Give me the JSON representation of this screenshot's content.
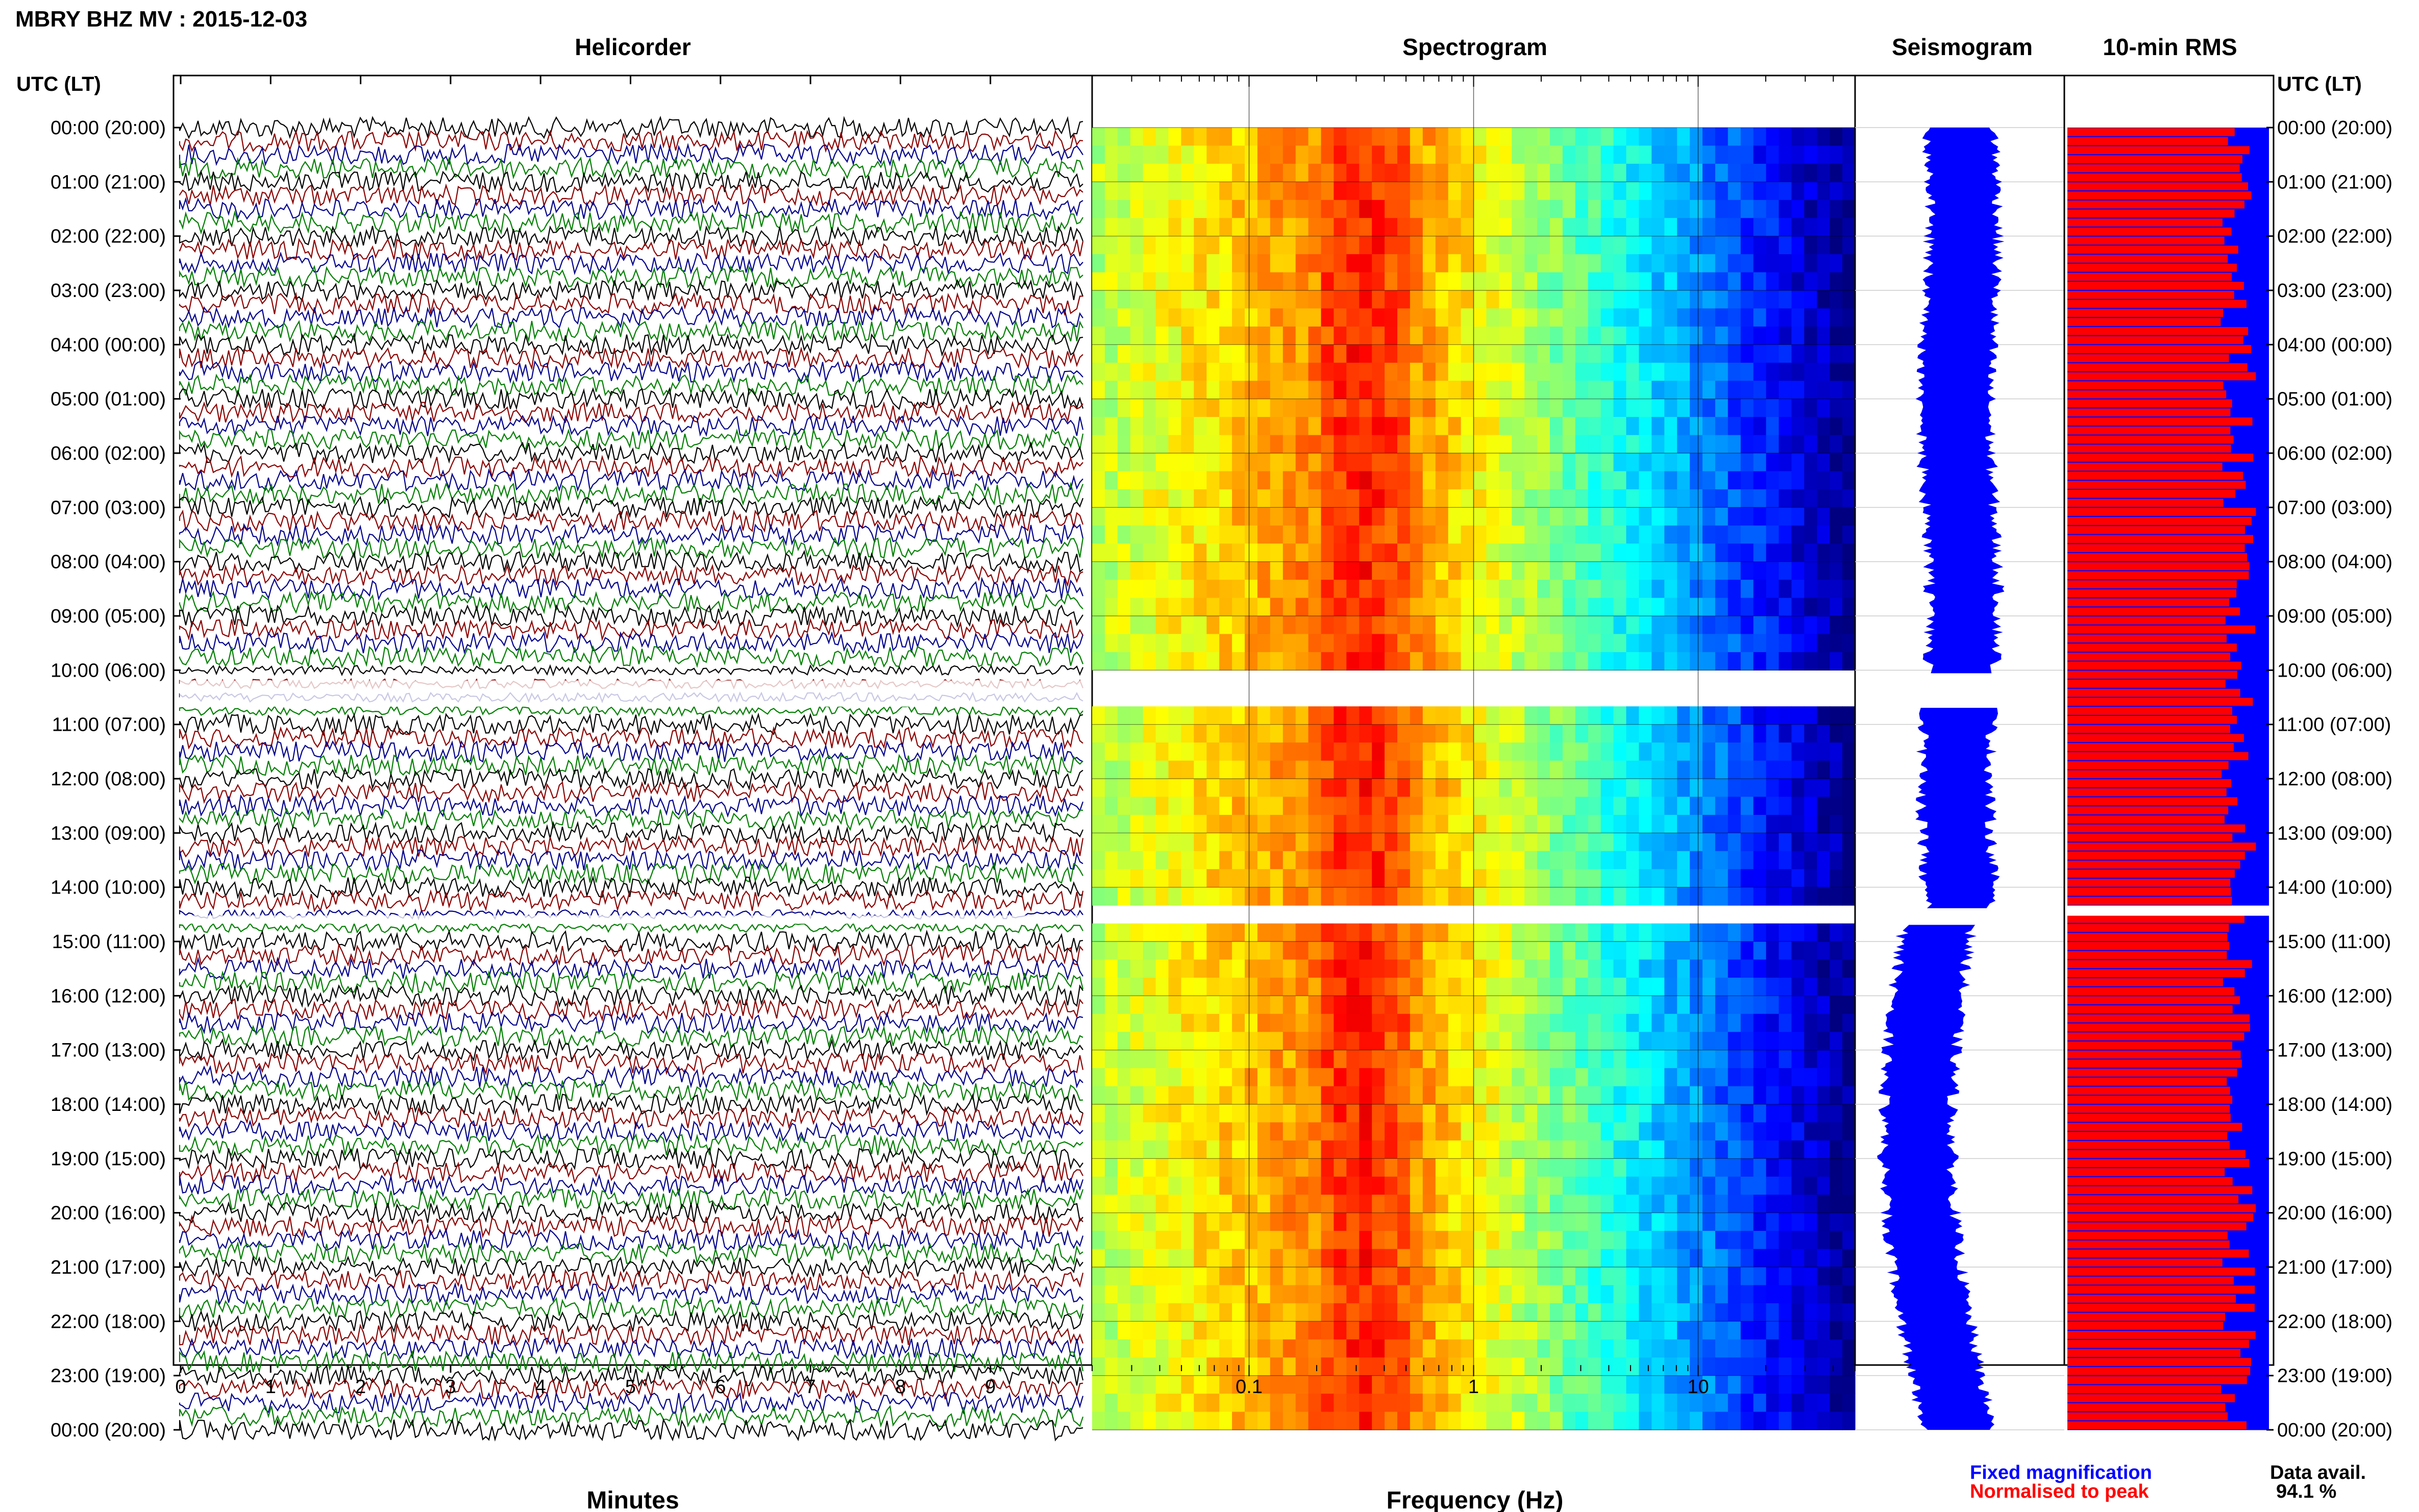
{
  "title": "MBRY BHZ MV : 2015-12-03",
  "panels": {
    "helicorder": "Helicorder",
    "spectrogram": "Spectrogram",
    "seismogram": "Seismogram",
    "rms": "10-min RMS"
  },
  "time_axis_title": "UTC (LT)",
  "time_labels": [
    "00:00 (20:00)",
    "01:00 (21:00)",
    "02:00 (22:00)",
    "03:00 (23:00)",
    "04:00 (00:00)",
    "05:00 (01:00)",
    "06:00 (02:00)",
    "07:00 (03:00)",
    "08:00 (04:00)",
    "09:00 (05:00)",
    "10:00 (06:00)",
    "11:00 (07:00)",
    "12:00 (08:00)",
    "13:00 (09:00)",
    "14:00 (10:00)",
    "15:00 (11:00)",
    "16:00 (12:00)",
    "17:00 (13:00)",
    "18:00 (14:00)",
    "19:00 (15:00)",
    "20:00 (16:00)",
    "21:00 (17:00)",
    "22:00 (18:00)",
    "23:00 (19:00)",
    "00:00 (20:00)"
  ],
  "helicorder_axis": {
    "label": "Minutes",
    "ticks": [
      "0",
      "1",
      "2",
      "3",
      "4",
      "5",
      "6",
      "7",
      "8",
      "9"
    ]
  },
  "spectrogram_axis": {
    "label": "Frequency (Hz)",
    "ticks": [
      "0.1",
      "1",
      "10"
    ]
  },
  "legend": {
    "fixed": "Fixed magnification",
    "normalised": "Normalised to peak"
  },
  "data_avail": {
    "label": "Data avail.",
    "value": "94.1 %"
  },
  "colors": {
    "fixed": "#0000ff",
    "normalised": "#ff0000",
    "trace1": "#000000",
    "trace2": "#8b0000",
    "trace3": "#00008b",
    "trace4": "#007f00"
  },
  "chart_data": {
    "type": "heatmap",
    "duration_hours": 24,
    "gaps_utc_hours": [
      [
        10.0,
        10.75
      ],
      [
        14.33,
        14.75
      ]
    ],
    "spectrogram": {
      "freq_range_hz": [
        0.02,
        50
      ],
      "log_scale": true,
      "peak_band_hz": [
        0.2,
        0.5
      ]
    },
    "data_availability_percent": 94.1
  }
}
